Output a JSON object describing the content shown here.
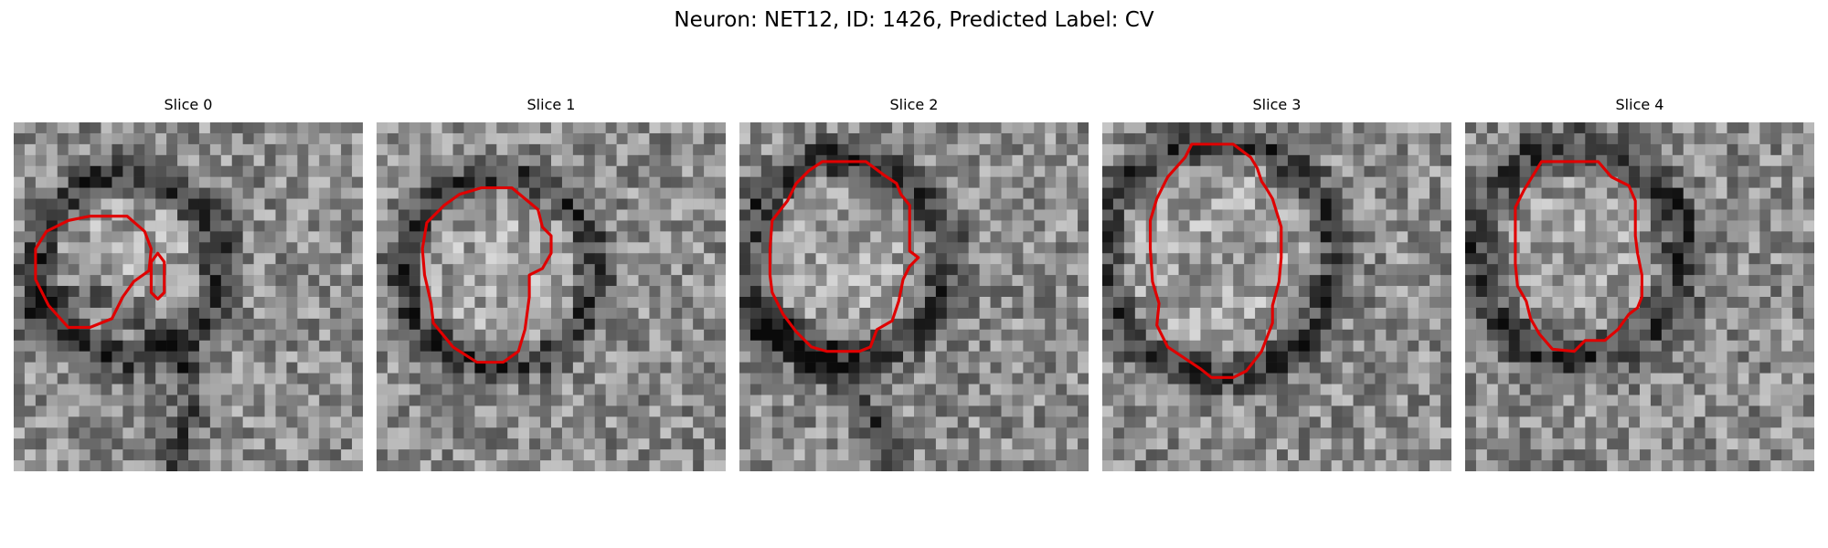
{
  "figure": {
    "title": "Neuron: NET12, ID: 1426, Predicted Label: CV"
  },
  "overlay_color": "#e00000",
  "panels": [
    {
      "title": "Slice 0",
      "contours": [
        [
          [
            3.5,
            4.3
          ],
          [
            5.2,
            4.3
          ],
          [
            6.0,
            5.0
          ],
          [
            6.3,
            5.8
          ],
          [
            6.2,
            6.8
          ],
          [
            5.5,
            7.3
          ],
          [
            5.0,
            8.0
          ],
          [
            4.5,
            9.0
          ],
          [
            3.5,
            9.4
          ],
          [
            2.5,
            9.4
          ],
          [
            1.6,
            8.4
          ],
          [
            1.0,
            7.2
          ],
          [
            1.0,
            5.8
          ],
          [
            1.5,
            5.0
          ],
          [
            2.5,
            4.5
          ]
        ],
        [
          [
            6.6,
            6.0
          ],
          [
            6.9,
            6.4
          ],
          [
            6.9,
            7.8
          ],
          [
            6.6,
            8.1
          ],
          [
            6.3,
            7.8
          ],
          [
            6.3,
            6.4
          ]
        ]
      ]
    },
    {
      "title": "Slice 1",
      "contours": [
        [
          [
            4.8,
            3.0
          ],
          [
            6.2,
            3.0
          ],
          [
            7.4,
            4.0
          ],
          [
            7.6,
            4.8
          ],
          [
            8.0,
            5.2
          ],
          [
            8.0,
            6.0
          ],
          [
            7.6,
            6.7
          ],
          [
            7.0,
            7.0
          ],
          [
            7.0,
            8.0
          ],
          [
            6.8,
            9.5
          ],
          [
            6.5,
            10.5
          ],
          [
            5.8,
            11.0
          ],
          [
            4.6,
            11.0
          ],
          [
            3.5,
            10.3
          ],
          [
            2.6,
            9.2
          ],
          [
            2.5,
            8.3
          ],
          [
            2.2,
            7.0
          ],
          [
            2.1,
            5.8
          ],
          [
            2.3,
            4.6
          ],
          [
            3.1,
            3.8
          ],
          [
            3.8,
            3.3
          ]
        ]
      ]
    },
    {
      "title": "Slice 2",
      "contours": [
        [
          [
            3.8,
            1.8
          ],
          [
            5.8,
            1.8
          ],
          [
            6.6,
            2.4
          ],
          [
            7.2,
            2.8
          ],
          [
            7.4,
            3.3
          ],
          [
            7.8,
            3.8
          ],
          [
            7.8,
            4.8
          ],
          [
            7.8,
            5.9
          ],
          [
            8.2,
            6.2
          ],
          [
            7.8,
            6.6
          ],
          [
            7.5,
            7.2
          ],
          [
            7.3,
            8.2
          ],
          [
            7.0,
            9.1
          ],
          [
            6.3,
            9.5
          ],
          [
            6.0,
            10.3
          ],
          [
            5.5,
            10.5
          ],
          [
            4.0,
            10.5
          ],
          [
            3.3,
            10.3
          ],
          [
            2.6,
            9.6
          ],
          [
            2.0,
            8.8
          ],
          [
            1.5,
            7.8
          ],
          [
            1.4,
            7.0
          ],
          [
            1.4,
            5.8
          ],
          [
            1.5,
            4.5
          ],
          [
            2.2,
            3.6
          ],
          [
            2.6,
            2.8
          ],
          [
            3.2,
            2.2
          ]
        ]
      ]
    },
    {
      "title": "Slice 3",
      "contours": [
        [
          [
            4.1,
            1.0
          ],
          [
            6.0,
            1.0
          ],
          [
            6.8,
            1.6
          ],
          [
            7.1,
            2.1
          ],
          [
            7.3,
            2.7
          ],
          [
            7.5,
            3.0
          ],
          [
            7.8,
            3.5
          ],
          [
            8.2,
            4.8
          ],
          [
            8.2,
            6.2
          ],
          [
            8.1,
            7.3
          ],
          [
            7.8,
            8.4
          ],
          [
            7.8,
            9.2
          ],
          [
            7.3,
            10.5
          ],
          [
            6.6,
            11.4
          ],
          [
            6.0,
            11.7
          ],
          [
            5.0,
            11.7
          ],
          [
            4.5,
            11.3
          ],
          [
            3.9,
            10.9
          ],
          [
            3.0,
            10.3
          ],
          [
            2.5,
            9.3
          ],
          [
            2.6,
            8.3
          ],
          [
            2.3,
            7.3
          ],
          [
            2.2,
            5.8
          ],
          [
            2.2,
            4.5
          ],
          [
            2.5,
            3.5
          ],
          [
            3.0,
            2.5
          ],
          [
            3.8,
            1.6
          ]
        ]
      ]
    },
    {
      "title": "Slice 4",
      "contours": [
        [
          [
            3.5,
            1.8
          ],
          [
            6.1,
            1.8
          ],
          [
            6.7,
            2.5
          ],
          [
            7.5,
            2.9
          ],
          [
            7.8,
            3.6
          ],
          [
            7.8,
            4.5
          ],
          [
            7.8,
            5.2
          ],
          [
            7.9,
            6.0
          ],
          [
            8.1,
            7.0
          ],
          [
            8.1,
            8.0
          ],
          [
            7.9,
            8.5
          ],
          [
            7.5,
            8.8
          ],
          [
            7.0,
            9.5
          ],
          [
            6.4,
            10.0
          ],
          [
            5.5,
            10.0
          ],
          [
            5.0,
            10.5
          ],
          [
            4.0,
            10.4
          ],
          [
            3.4,
            9.7
          ],
          [
            3.0,
            9.0
          ],
          [
            2.8,
            8.2
          ],
          [
            2.4,
            7.5
          ],
          [
            2.3,
            6.5
          ],
          [
            2.3,
            5.2
          ],
          [
            2.3,
            3.9
          ],
          [
            2.7,
            3.1
          ]
        ]
      ]
    }
  ]
}
